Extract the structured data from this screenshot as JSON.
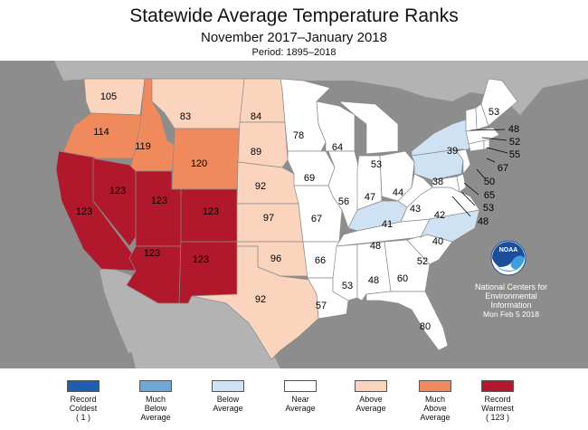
{
  "header": {
    "title": "Statewide Average Temperature Ranks",
    "subtitle": "November 2017–January 2018",
    "period": "Period: 1895–2018"
  },
  "colors": {
    "record_coldest": "#1f5fb0",
    "much_below": "#6fa8d6",
    "below": "#cfe2f3",
    "near": "#ffffff",
    "above": "#fbd4bd",
    "much_above": "#f08a5d",
    "record_warmest": "#b2182b",
    "background": "#8d8d8d"
  },
  "states": [
    {
      "id": "WA",
      "rank": "105",
      "category": "above"
    },
    {
      "id": "OR",
      "rank": "114",
      "category": "much_above"
    },
    {
      "id": "ID",
      "rank": "119",
      "category": "much_above"
    },
    {
      "id": "MT",
      "rank": "83",
      "category": "above"
    },
    {
      "id": "WY",
      "rank": "120",
      "category": "much_above"
    },
    {
      "id": "ND",
      "rank": "84",
      "category": "above"
    },
    {
      "id": "SD",
      "rank": "89",
      "category": "above"
    },
    {
      "id": "NE",
      "rank": "92",
      "category": "above"
    },
    {
      "id": "KS",
      "rank": "97",
      "category": "above"
    },
    {
      "id": "OK",
      "rank": "96",
      "category": "above"
    },
    {
      "id": "TX",
      "rank": "92",
      "category": "above"
    },
    {
      "id": "CA",
      "rank": "123",
      "category": "record_warmest"
    },
    {
      "id": "NV",
      "rank": "123",
      "category": "record_warmest"
    },
    {
      "id": "UT",
      "rank": "123",
      "category": "record_warmest"
    },
    {
      "id": "CO",
      "rank": "123",
      "category": "record_warmest"
    },
    {
      "id": "AZ",
      "rank": "123",
      "category": "record_warmest"
    },
    {
      "id": "NM",
      "rank": "123",
      "category": "record_warmest"
    },
    {
      "id": "MN",
      "rank": "78",
      "category": "near"
    },
    {
      "id": "IA",
      "rank": "69",
      "category": "near"
    },
    {
      "id": "MO",
      "rank": "67",
      "category": "near"
    },
    {
      "id": "AR",
      "rank": "66",
      "category": "near"
    },
    {
      "id": "LA",
      "rank": "57",
      "category": "near"
    },
    {
      "id": "WI",
      "rank": "64",
      "category": "near"
    },
    {
      "id": "IL",
      "rank": "56",
      "category": "near"
    },
    {
      "id": "MI",
      "rank": "53",
      "category": "near"
    },
    {
      "id": "IN",
      "rank": "47",
      "category": "near"
    },
    {
      "id": "OH",
      "rank": "44",
      "category": "near"
    },
    {
      "id": "KY",
      "rank": "41",
      "category": "below"
    },
    {
      "id": "TN",
      "rank": "48",
      "category": "near"
    },
    {
      "id": "MS",
      "rank": "53",
      "category": "near"
    },
    {
      "id": "AL",
      "rank": "48",
      "category": "near"
    },
    {
      "id": "GA",
      "rank": "60",
      "category": "near"
    },
    {
      "id": "FL",
      "rank": "80",
      "category": "near"
    },
    {
      "id": "SC",
      "rank": "52",
      "category": "near"
    },
    {
      "id": "NC",
      "rank": "40",
      "category": "below"
    },
    {
      "id": "VA",
      "rank": "42",
      "category": "near"
    },
    {
      "id": "WV",
      "rank": "43",
      "category": "near"
    },
    {
      "id": "PA",
      "rank": "38",
      "category": "below"
    },
    {
      "id": "NY",
      "rank": "39",
      "category": "below"
    },
    {
      "id": "ME",
      "rank": "53",
      "category": "near"
    },
    {
      "id": "VT",
      "rank": "48",
      "category": "near"
    },
    {
      "id": "NH",
      "rank": "52",
      "category": "near"
    },
    {
      "id": "MA",
      "rank": "55",
      "category": "near"
    },
    {
      "id": "RI",
      "rank": "67",
      "category": "near"
    },
    {
      "id": "CT",
      "rank": "50",
      "category": "near"
    },
    {
      "id": "NJ",
      "rank": "65",
      "category": "near"
    },
    {
      "id": "DE",
      "rank": "53",
      "category": "near"
    },
    {
      "id": "MD",
      "rank": "48",
      "category": "near"
    }
  ],
  "legend": [
    {
      "label": "Record\nColdest\n( 1 )",
      "category": "record_coldest"
    },
    {
      "label": "Much\nBelow\nAverage",
      "category": "much_below"
    },
    {
      "label": "Below\nAverage",
      "category": "below"
    },
    {
      "label": "Near\nAverage",
      "category": "near"
    },
    {
      "label": "Above\nAverage",
      "category": "above"
    },
    {
      "label": "Much\nAbove\nAverage",
      "category": "much_above"
    },
    {
      "label": "Record\nWarmest\n( 123 )",
      "category": "record_warmest"
    }
  ],
  "branding": {
    "logo_text": "NOAA",
    "org_line1": "National Centers for",
    "org_line2": "Environmental",
    "org_line3": "Information",
    "date": "Mon Feb  5 2018"
  }
}
